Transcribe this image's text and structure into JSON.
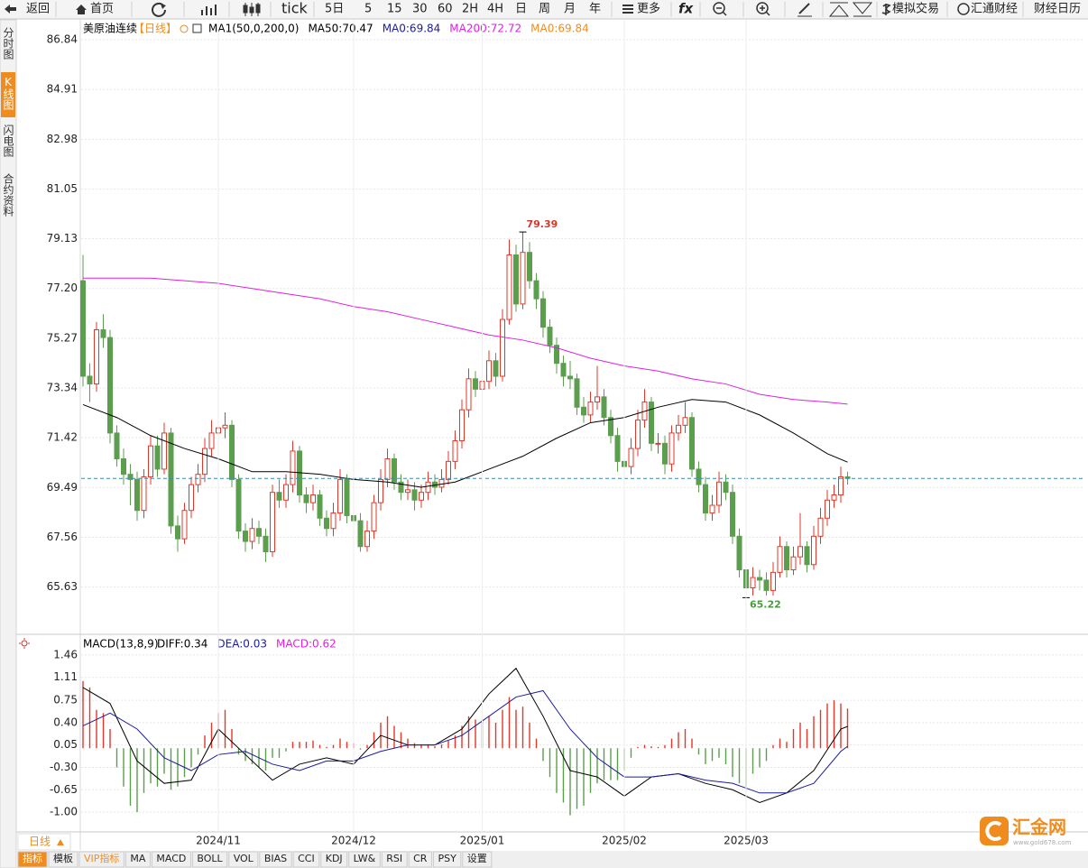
{
  "ui": {
    "toolbar": {
      "back": "返回",
      "home": "首页",
      "tick": "tick",
      "periods": [
        "5日",
        "5",
        "15",
        "30",
        "60",
        "2H",
        "4H",
        "日",
        "周",
        "月",
        "年"
      ],
      "more": "更多",
      "fx": "fx",
      "trade": "模拟交易",
      "news": "汇通财经",
      "calendar": "财经日历"
    },
    "sidebar": [
      "分时图",
      "K线图",
      "闪电图",
      "合约资料"
    ],
    "sidebar_active": 1,
    "period_button": "日线",
    "tabs": [
      "指标",
      "模板",
      "VIP指标",
      "MA",
      "MACD",
      "BOLL",
      "VOL",
      "BIAS",
      "CCI",
      "KDJ",
      "LW&",
      "RSI",
      "CR",
      "PSY",
      "设置"
    ],
    "tabs_active": 0,
    "logo": "汇金网",
    "logo_sub": "www.gold678.com"
  },
  "chart_data": [
    {
      "type": "candlestick",
      "title": "美原油连续",
      "period": "【日线】",
      "up_color": "#e0392b",
      "down_color": "#5b9e4d",
      "ylim": [
        63.8,
        87.33
      ],
      "yticks": [
        86.84,
        84.91,
        82.98,
        81.05,
        79.13,
        {
          "value": 77.2,
          "label": "77.20"
        },
        75.27,
        73.34,
        71.42,
        69.49,
        67.56,
        65.63
      ],
      "grid": true,
      "legend": [
        {
          "text": "MA1(50,0,200,0)",
          "color": "#000000"
        },
        {
          "text": "MA50:70.47",
          "color": "#000000"
        },
        {
          "text": "MA0:69.84",
          "color": "#1c1c9c"
        },
        {
          "text": "MA200:72.72",
          "color": "#e020e0"
        },
        {
          "text": "MA0:69.84",
          "color": "#f08c1e"
        }
      ],
      "high": 79.39,
      "low": 65.22,
      "last_line_color": "#2f8db3",
      "ohlc": [
        [
          77.5,
          78.5,
          73.4,
          73.8
        ],
        [
          73.8,
          74.3,
          72.8,
          73.5
        ],
        [
          73.5,
          75.9,
          73.2,
          75.6
        ],
        [
          75.6,
          76.2,
          74.9,
          75.3
        ],
        [
          75.3,
          75.6,
          71.2,
          71.6
        ],
        [
          71.6,
          71.9,
          70.3,
          70.6
        ],
        [
          70.6,
          71.0,
          69.6,
          70.0
        ],
        [
          70.0,
          70.4,
          68.8,
          69.8
        ],
        [
          69.8,
          70.1,
          68.2,
          68.6
        ],
        [
          68.6,
          70.2,
          68.3,
          69.9
        ],
        [
          69.9,
          71.5,
          69.6,
          71.1
        ],
        [
          71.1,
          71.5,
          69.9,
          70.2
        ],
        [
          70.2,
          72.0,
          70.0,
          71.6
        ],
        [
          71.6,
          71.8,
          67.7,
          68.0
        ],
        [
          68.0,
          68.4,
          67.0,
          67.5
        ],
        [
          67.5,
          68.9,
          67.3,
          68.6
        ],
        [
          68.6,
          69.9,
          68.3,
          69.6
        ],
        [
          69.6,
          70.4,
          69.3,
          70.0
        ],
        [
          70.0,
          71.4,
          69.7,
          71.0
        ],
        [
          71.0,
          72.1,
          70.7,
          71.6
        ],
        [
          71.6,
          72.5,
          71.2,
          71.8
        ],
        [
          71.8,
          72.4,
          71.4,
          71.9
        ],
        [
          71.9,
          72.1,
          69.5,
          69.8
        ],
        [
          69.8,
          70.0,
          67.5,
          67.8
        ],
        [
          67.8,
          68.1,
          67.0,
          67.4
        ],
        [
          67.4,
          68.3,
          67.1,
          67.9
        ],
        [
          67.9,
          68.2,
          67.3,
          67.6
        ],
        [
          67.6,
          67.9,
          66.6,
          67.0
        ],
        [
          67.0,
          69.6,
          66.8,
          69.3
        ],
        [
          69.3,
          69.8,
          68.7,
          69.0
        ],
        [
          69.0,
          70.0,
          68.7,
          69.6
        ],
        [
          69.6,
          71.3,
          69.3,
          70.9
        ],
        [
          70.9,
          71.1,
          68.9,
          69.2
        ],
        [
          69.2,
          69.5,
          68.5,
          68.9
        ],
        [
          68.9,
          69.6,
          68.6,
          69.2
        ],
        [
          69.2,
          69.4,
          68.0,
          68.3
        ],
        [
          68.3,
          68.6,
          67.6,
          67.9
        ],
        [
          67.9,
          68.9,
          67.6,
          68.5
        ],
        [
          68.5,
          70.2,
          68.2,
          69.8
        ],
        [
          69.8,
          70.0,
          68.1,
          68.4
        ],
        [
          68.4,
          68.8,
          67.9,
          68.2
        ],
        [
          68.2,
          68.5,
          67.0,
          67.2
        ],
        [
          67.2,
          68.2,
          67.0,
          67.8
        ],
        [
          67.8,
          69.2,
          67.5,
          68.9
        ],
        [
          68.9,
          70.2,
          68.6,
          69.8
        ],
        [
          69.8,
          71.0,
          69.5,
          70.6
        ],
        [
          70.6,
          70.8,
          69.4,
          69.7
        ],
        [
          69.7,
          70.0,
          69.0,
          69.3
        ],
        [
          69.3,
          69.8,
          69.0,
          69.4
        ],
        [
          69.4,
          69.7,
          68.6,
          69.0
        ],
        [
          69.0,
          69.6,
          68.7,
          69.3
        ],
        [
          69.3,
          70.1,
          69.0,
          69.7
        ],
        [
          69.7,
          70.0,
          69.2,
          69.5
        ],
        [
          69.5,
          70.2,
          69.3,
          69.8
        ],
        [
          69.8,
          70.9,
          69.6,
          70.5
        ],
        [
          70.5,
          71.7,
          70.2,
          71.3
        ],
        [
          71.3,
          72.9,
          71.0,
          72.5
        ],
        [
          72.5,
          74.1,
          72.2,
          73.7
        ],
        [
          73.7,
          74.0,
          73.0,
          73.3
        ],
        [
          73.3,
          74.0,
          73.0,
          73.6
        ],
        [
          73.6,
          74.8,
          73.3,
          74.4
        ],
        [
          74.4,
          74.7,
          73.4,
          73.8
        ],
        [
          73.8,
          76.4,
          73.6,
          76.0
        ],
        [
          76.0,
          79.1,
          75.8,
          78.5
        ],
        [
          78.5,
          78.9,
          76.3,
          76.6
        ],
        [
          76.6,
          79.39,
          76.4,
          78.6
        ],
        [
          78.6,
          79.0,
          77.2,
          77.5
        ],
        [
          77.5,
          77.8,
          76.4,
          76.8
        ],
        [
          76.8,
          77.1,
          75.3,
          75.7
        ],
        [
          75.7,
          76.0,
          74.7,
          75.0
        ],
        [
          75.0,
          75.3,
          73.9,
          74.3
        ],
        [
          74.3,
          74.6,
          73.4,
          73.8
        ],
        [
          73.8,
          74.4,
          73.3,
          73.7
        ],
        [
          73.7,
          73.9,
          72.3,
          72.6
        ],
        [
          72.6,
          73.0,
          72.0,
          72.3
        ],
        [
          72.3,
          73.2,
          72.0,
          72.8
        ],
        [
          72.8,
          74.2,
          72.5,
          73.0
        ],
        [
          73.0,
          73.3,
          71.9,
          72.2
        ],
        [
          72.2,
          72.5,
          71.2,
          71.5
        ],
        [
          71.5,
          71.8,
          70.1,
          70.5
        ],
        [
          70.5,
          70.9,
          70.0,
          70.3
        ],
        [
          70.3,
          71.4,
          70.0,
          71.0
        ],
        [
          71.0,
          72.5,
          70.7,
          72.1
        ],
        [
          72.1,
          73.3,
          71.8,
          72.8
        ],
        [
          72.8,
          73.0,
          70.9,
          71.2
        ],
        [
          71.2,
          71.6,
          70.8,
          71.2
        ],
        [
          71.2,
          71.5,
          70.0,
          70.4
        ],
        [
          70.4,
          71.9,
          70.1,
          71.6
        ],
        [
          71.6,
          72.3,
          71.3,
          71.9
        ],
        [
          71.9,
          72.8,
          71.6,
          72.2
        ],
        [
          72.2,
          72.4,
          69.9,
          70.2
        ],
        [
          70.2,
          70.5,
          69.3,
          69.6
        ],
        [
          69.6,
          69.9,
          68.2,
          68.5
        ],
        [
          68.5,
          69.2,
          68.2,
          68.8
        ],
        [
          68.8,
          70.1,
          68.5,
          69.7
        ],
        [
          69.7,
          70.0,
          69.0,
          69.3
        ],
        [
          69.3,
          69.6,
          67.3,
          67.6
        ],
        [
          67.6,
          67.9,
          66.0,
          66.3
        ],
        [
          66.3,
          66.6,
          65.22,
          65.6
        ],
        [
          65.6,
          66.4,
          65.3,
          66.0
        ],
        [
          66.0,
          66.3,
          65.5,
          65.9
        ],
        [
          65.9,
          66.2,
          65.3,
          65.5
        ],
        [
          65.5,
          66.6,
          65.3,
          66.2
        ],
        [
          66.2,
          67.6,
          66.0,
          67.2
        ],
        [
          67.2,
          67.4,
          66.0,
          66.3
        ],
        [
          66.3,
          67.2,
          66.1,
          66.8
        ],
        [
          66.8,
          68.5,
          66.5,
          67.2
        ],
        [
          67.2,
          67.4,
          66.2,
          66.5
        ],
        [
          66.5,
          68.0,
          66.3,
          67.6
        ],
        [
          67.6,
          68.7,
          67.3,
          68.3
        ],
        [
          68.3,
          69.4,
          68.0,
          69.0
        ],
        [
          69.0,
          69.6,
          68.7,
          69.2
        ],
        [
          69.2,
          70.3,
          68.9,
          69.9
        ],
        [
          69.9,
          70.1,
          69.6,
          69.84
        ]
      ],
      "series": [
        {
          "color": "#000000",
          "x": [
            0,
            5,
            10,
            15,
            20,
            25,
            30,
            35,
            40,
            45,
            50,
            55,
            60,
            65,
            70,
            75,
            80,
            85,
            90,
            95,
            100,
            105,
            110,
            113
          ],
          "values": [
            72.7,
            72.2,
            71.5,
            71.0,
            70.6,
            70.1,
            70.1,
            70.0,
            69.8,
            69.7,
            69.5,
            69.7,
            70.2,
            70.7,
            71.4,
            72.0,
            72.2,
            72.6,
            72.9,
            72.8,
            72.3,
            71.6,
            70.8,
            70.47
          ]
        },
        {
          "color": "#e020e0",
          "x": [
            0,
            5,
            10,
            15,
            20,
            25,
            30,
            35,
            40,
            45,
            50,
            55,
            60,
            65,
            70,
            75,
            80,
            85,
            90,
            95,
            100,
            105,
            110,
            113
          ],
          "values": [
            77.6,
            77.6,
            77.6,
            77.5,
            77.4,
            77.2,
            77.0,
            76.8,
            76.5,
            76.3,
            76.0,
            75.7,
            75.4,
            75.2,
            74.9,
            74.5,
            74.2,
            74.0,
            73.7,
            73.5,
            73.1,
            72.9,
            72.8,
            72.72
          ]
        }
      ]
    },
    {
      "type": "macd",
      "title": "MACD(13,8,9)",
      "up_color": "#e0392b",
      "down_color": "#5b9e4d",
      "legend": [
        {
          "text": "DIFF:0.34",
          "color": "#000000"
        },
        {
          "text": "DEA:0.03",
          "color": "#1c1c9c"
        },
        {
          "text": "MACD:0.62",
          "color": "#e020e0"
        }
      ],
      "ylim": [
        -1.31,
        1.74
      ],
      "yticks": [
        1.46,
        1.11,
        0.75,
        {
          "value": 0.4,
          "label": "0.40"
        },
        0.05,
        {
          "value": -0.3,
          "label": "-0.30"
        },
        -0.65,
        {
          "value": -1,
          "label": "-1.00"
        }
      ],
      "categories": [
        null,
        null,
        null,
        null,
        null,
        null,
        null,
        null,
        null,
        null,
        null,
        null,
        null,
        null,
        null,
        null,
        null,
        null,
        null,
        null,
        "2024/11",
        null,
        null,
        null,
        null,
        null,
        null,
        null,
        null,
        null,
        null,
        null,
        null,
        null,
        null,
        null,
        null,
        null,
        null,
        null,
        "2024/12",
        null,
        null,
        null,
        null,
        null,
        null,
        null,
        null,
        null,
        null,
        null,
        null,
        null,
        null,
        null,
        null,
        null,
        null,
        "2025/01",
        null,
        null,
        null,
        null,
        null,
        null,
        null,
        null,
        null,
        null,
        null,
        null,
        null,
        null,
        null,
        null,
        null,
        null,
        null,
        null,
        "2025/02",
        null,
        null,
        null,
        null,
        null,
        null,
        null,
        null,
        null,
        null,
        null,
        null,
        null,
        null,
        null,
        null,
        null,
        "2025/03",
        null,
        null,
        null,
        null,
        null,
        null,
        null,
        null,
        null,
        null,
        null,
        null,
        null,
        null,
        null
      ],
      "histogram": [
        1.05,
        0.95,
        0.6,
        0.55,
        0.3,
        -0.3,
        -0.6,
        -0.9,
        -1.0,
        -0.7,
        -0.55,
        -0.6,
        -0.4,
        -0.65,
        -0.6,
        -0.45,
        -0.3,
        -0.1,
        0.2,
        0.4,
        0.55,
        0.6,
        0.3,
        -0.1,
        -0.2,
        -0.25,
        -0.3,
        -0.35,
        -0.15,
        -0.15,
        -0.05,
        0.1,
        0.1,
        0.1,
        0.12,
        0.05,
        0.02,
        0.05,
        0.15,
        0.1,
        0.08,
        -0.02,
        0.05,
        0.25,
        0.4,
        0.5,
        0.35,
        0.25,
        0.15,
        0.08,
        0.05,
        0.06,
        0.03,
        0.06,
        0.12,
        0.2,
        0.35,
        0.5,
        0.45,
        0.45,
        0.5,
        0.4,
        0.6,
        0.8,
        0.6,
        0.65,
        0.4,
        0.15,
        -0.2,
        -0.45,
        -0.7,
        -0.85,
        -1.05,
        -0.95,
        -0.9,
        -0.7,
        -0.55,
        -0.5,
        -0.5,
        -0.5,
        -0.35,
        -0.15,
        0.02,
        0.05,
        0.03,
        0.02,
        0.05,
        0.15,
        0.25,
        0.3,
        0.15,
        -0.1,
        -0.25,
        -0.2,
        -0.15,
        -0.25,
        -0.45,
        -0.55,
        -0.6,
        -0.4,
        -0.3,
        -0.2,
        0.05,
        0.15,
        0.1,
        0.3,
        0.4,
        0.3,
        0.5,
        0.6,
        0.7,
        0.75,
        0.7,
        0.62
      ],
      "series": [
        {
          "color": "#000000",
          "x": [
            0,
            4,
            8,
            12,
            16,
            20,
            24,
            28,
            32,
            36,
            40,
            44,
            48,
            52,
            56,
            60,
            64,
            68,
            72,
            76,
            80,
            84,
            88,
            92,
            96,
            100,
            104,
            108,
            112,
            113
          ],
          "values": [
            0.95,
            0.7,
            -0.2,
            -0.55,
            -0.5,
            0.3,
            -0.1,
            -0.5,
            -0.25,
            -0.15,
            -0.25,
            0.2,
            0.05,
            0.05,
            0.3,
            0.85,
            1.25,
            0.5,
            -0.35,
            -0.45,
            -0.75,
            -0.45,
            -0.4,
            -0.55,
            -0.65,
            -0.85,
            -0.7,
            -0.35,
            0.3,
            0.34
          ]
        },
        {
          "color": "#1c1c9c",
          "x": [
            0,
            4,
            8,
            12,
            16,
            20,
            24,
            28,
            32,
            36,
            40,
            44,
            48,
            52,
            56,
            60,
            64,
            68,
            72,
            76,
            80,
            84,
            88,
            92,
            96,
            100,
            104,
            108,
            112,
            113
          ],
          "values": [
            0.35,
            0.55,
            0.3,
            -0.15,
            -0.35,
            -0.1,
            -0.05,
            -0.25,
            -0.35,
            -0.2,
            -0.2,
            -0.05,
            0.05,
            0.05,
            0.2,
            0.5,
            0.8,
            0.9,
            0.3,
            -0.15,
            -0.45,
            -0.45,
            -0.4,
            -0.5,
            -0.55,
            -0.7,
            -0.7,
            -0.55,
            -0.05,
            0.03
          ]
        }
      ]
    }
  ]
}
